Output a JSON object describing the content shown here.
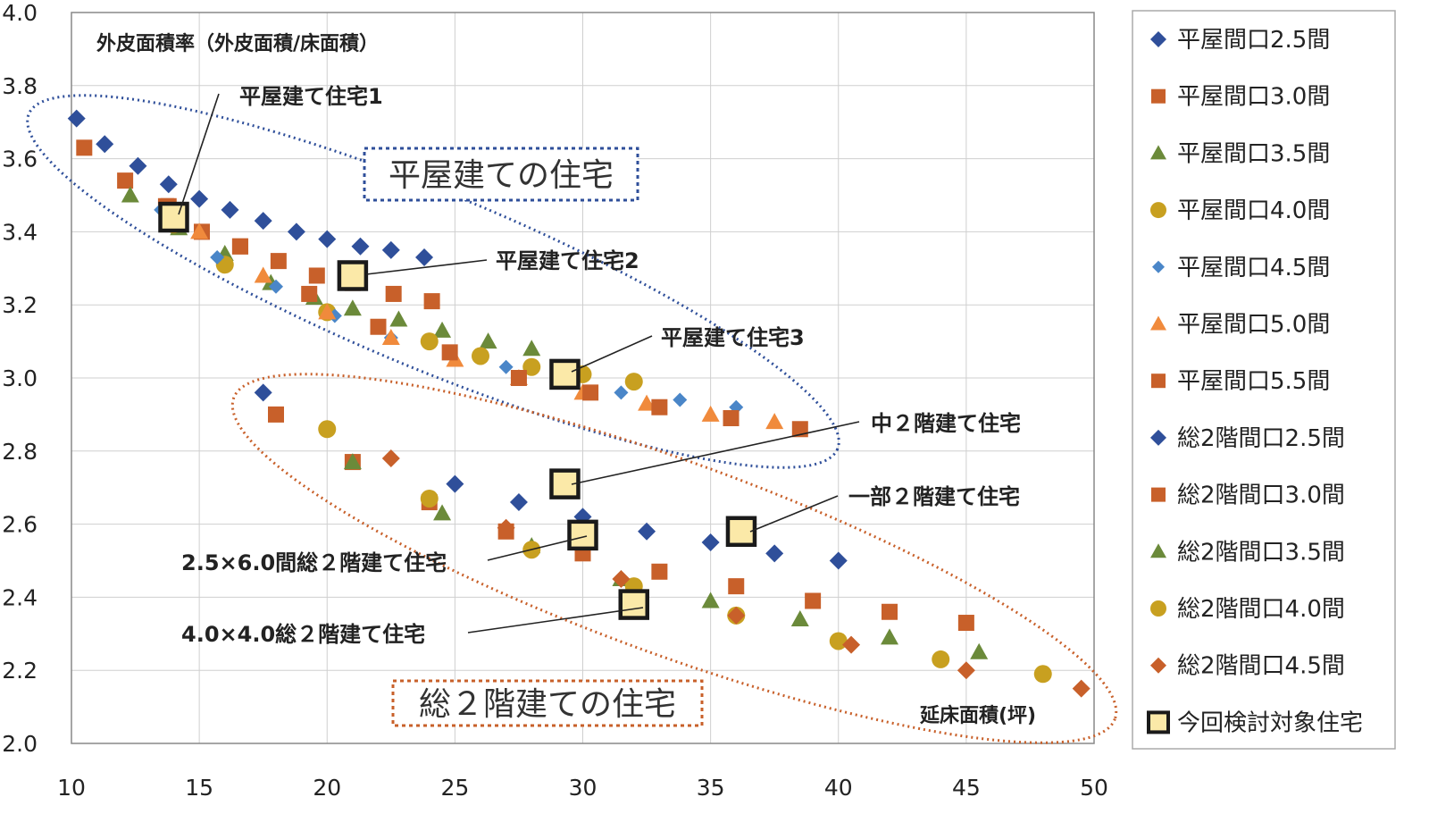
{
  "chart_data": {
    "type": "scatter",
    "ylabel": "外皮面積率（外皮面積/床面積）",
    "xlabel": "延床面積(坪)",
    "xlim": [
      10,
      50
    ],
    "ylim": [
      2.0,
      4.0
    ],
    "xticks": [
      "10",
      "15",
      "20",
      "25",
      "30",
      "35",
      "40",
      "45",
      "50"
    ],
    "yticks": [
      "2.0",
      "2.2",
      "2.4",
      "2.6",
      "2.8",
      "3.0",
      "3.2",
      "3.4",
      "3.6",
      "3.8",
      "4.0"
    ],
    "grid": true,
    "legend_position": "right",
    "series": [
      {
        "name": "平屋間口2.5間",
        "marker": "diamond",
        "color": "#2f4f9a",
        "points": [
          [
            10.2,
            3.71
          ],
          [
            11.3,
            3.64
          ],
          [
            12.6,
            3.58
          ],
          [
            13.8,
            3.53
          ],
          [
            15.0,
            3.49
          ],
          [
            16.2,
            3.46
          ],
          [
            17.5,
            3.43
          ],
          [
            18.8,
            3.4
          ],
          [
            20.0,
            3.38
          ],
          [
            21.3,
            3.36
          ],
          [
            22.5,
            3.35
          ],
          [
            23.8,
            3.33
          ]
        ]
      },
      {
        "name": "平屋間口3.0間",
        "marker": "square",
        "color": "#c8602a",
        "points": [
          [
            10.5,
            3.63
          ],
          [
            12.1,
            3.54
          ],
          [
            13.7,
            3.47
          ],
          [
            15.1,
            3.4
          ],
          [
            16.6,
            3.36
          ],
          [
            18.1,
            3.32
          ],
          [
            19.6,
            3.28
          ],
          [
            21.0,
            3.26
          ],
          [
            22.6,
            3.23
          ],
          [
            24.1,
            3.21
          ]
        ]
      },
      {
        "name": "平屋間口3.5間",
        "marker": "triangle",
        "color": "#6b8a3a",
        "points": [
          [
            12.3,
            3.5
          ],
          [
            14.2,
            3.41
          ],
          [
            16.0,
            3.34
          ],
          [
            17.8,
            3.26
          ],
          [
            19.5,
            3.22
          ],
          [
            21.0,
            3.19
          ],
          [
            22.8,
            3.16
          ],
          [
            24.5,
            3.13
          ],
          [
            26.3,
            3.1
          ],
          [
            28.0,
            3.08
          ]
        ]
      },
      {
        "name": "平屋間口4.0間",
        "marker": "circle",
        "color": "#c8a020",
        "points": [
          [
            14.0,
            3.42
          ],
          [
            16.0,
            3.31
          ],
          [
            20.0,
            3.18
          ],
          [
            24.0,
            3.1
          ],
          [
            26.0,
            3.06
          ],
          [
            28.0,
            3.03
          ],
          [
            30.0,
            3.01
          ],
          [
            32.0,
            2.99
          ]
        ]
      },
      {
        "name": "平屋間口4.5間",
        "marker": "diamond-small",
        "color": "#4a86c8",
        "points": [
          [
            13.5,
            3.46
          ],
          [
            15.7,
            3.33
          ],
          [
            18.0,
            3.25
          ],
          [
            20.3,
            3.17
          ],
          [
            22.5,
            3.11
          ],
          [
            24.8,
            3.07
          ],
          [
            27.0,
            3.03
          ],
          [
            29.3,
            2.99
          ],
          [
            31.5,
            2.96
          ],
          [
            33.8,
            2.94
          ],
          [
            36.0,
            2.92
          ]
        ]
      },
      {
        "name": "平屋間口5.0間",
        "marker": "triangle",
        "color": "#f08a3c",
        "points": [
          [
            15.0,
            3.4
          ],
          [
            17.5,
            3.28
          ],
          [
            20.0,
            3.18
          ],
          [
            22.5,
            3.11
          ],
          [
            25.0,
            3.05
          ],
          [
            27.5,
            3.0
          ],
          [
            30.0,
            2.96
          ],
          [
            32.5,
            2.93
          ],
          [
            35.0,
            2.9
          ],
          [
            37.5,
            2.88
          ]
        ]
      },
      {
        "name": "平屋間口5.5間",
        "marker": "square",
        "color": "#c8602a",
        "points": [
          [
            13.8,
            3.47
          ],
          [
            16.6,
            3.36
          ],
          [
            19.3,
            3.23
          ],
          [
            22.0,
            3.14
          ],
          [
            24.8,
            3.07
          ],
          [
            27.5,
            3.0
          ],
          [
            30.3,
            2.96
          ],
          [
            33.0,
            2.92
          ],
          [
            35.8,
            2.89
          ],
          [
            38.5,
            2.86
          ]
        ]
      },
      {
        "name": "総2階間口2.5間",
        "marker": "diamond",
        "color": "#2f4f9a",
        "points": [
          [
            17.5,
            2.96
          ],
          [
            25.0,
            2.71
          ],
          [
            27.5,
            2.66
          ],
          [
            30.0,
            2.62
          ],
          [
            32.5,
            2.58
          ],
          [
            35.0,
            2.55
          ],
          [
            37.5,
            2.52
          ],
          [
            40.0,
            2.5
          ]
        ]
      },
      {
        "name": "総2階間口3.0間",
        "marker": "square",
        "color": "#c8602a",
        "points": [
          [
            18.0,
            2.9
          ],
          [
            21.0,
            2.77
          ],
          [
            24.0,
            2.66
          ],
          [
            27.0,
            2.58
          ],
          [
            30.0,
            2.52
          ],
          [
            33.0,
            2.47
          ],
          [
            36.0,
            2.43
          ],
          [
            39.0,
            2.39
          ],
          [
            42.0,
            2.36
          ],
          [
            45.0,
            2.33
          ]
        ]
      },
      {
        "name": "総2階間口3.5間",
        "marker": "triangle",
        "color": "#6b8a3a",
        "points": [
          [
            21.0,
            2.77
          ],
          [
            24.5,
            2.63
          ],
          [
            28.0,
            2.54
          ],
          [
            31.5,
            2.45
          ],
          [
            35.0,
            2.39
          ],
          [
            38.5,
            2.34
          ],
          [
            42.0,
            2.29
          ],
          [
            45.5,
            2.25
          ]
        ]
      },
      {
        "name": "総2階間口4.0間",
        "marker": "circle",
        "color": "#c8a020",
        "points": [
          [
            20.0,
            2.86
          ],
          [
            24.0,
            2.67
          ],
          [
            28.0,
            2.53
          ],
          [
            32.0,
            2.43
          ],
          [
            36.0,
            2.35
          ],
          [
            40.0,
            2.28
          ],
          [
            44.0,
            2.23
          ],
          [
            48.0,
            2.19
          ]
        ]
      },
      {
        "name": "総2階間口4.5間",
        "marker": "diamond",
        "color": "#c8602a",
        "points": [
          [
            22.5,
            2.78
          ],
          [
            27.0,
            2.59
          ],
          [
            31.5,
            2.45
          ],
          [
            36.0,
            2.35
          ],
          [
            40.5,
            2.27
          ],
          [
            45.0,
            2.2
          ],
          [
            49.5,
            2.15
          ]
        ]
      },
      {
        "name": "今回検討対象住宅",
        "marker": "highlight-square",
        "color": "#222222",
        "points": [
          [
            14.0,
            3.44
          ],
          [
            21.0,
            3.28
          ],
          [
            29.3,
            3.01
          ],
          [
            29.3,
            2.71
          ],
          [
            30.0,
            2.57
          ],
          [
            36.2,
            2.58
          ],
          [
            32.0,
            2.38
          ]
        ]
      }
    ],
    "annotations": [
      {
        "text": "平屋建て住宅1",
        "target": [
          14.0,
          3.44
        ]
      },
      {
        "text": "平屋建て住宅2",
        "target": [
          21.0,
          3.28
        ]
      },
      {
        "text": "平屋建て住宅3",
        "target": [
          29.3,
          3.01
        ]
      },
      {
        "text": "中２階建て住宅",
        "target": [
          29.3,
          2.71
        ]
      },
      {
        "text": "一部２階建て住宅",
        "target": [
          36.2,
          2.58
        ]
      },
      {
        "text": "2.5×6.0間総２階建て住宅",
        "target": [
          30.0,
          2.57
        ]
      },
      {
        "text": "4.0×4.0総２階建て住宅",
        "target": [
          32.0,
          2.38
        ]
      }
    ],
    "group_labels": [
      "平屋建ての住宅",
      "総２階建ての住宅"
    ]
  }
}
